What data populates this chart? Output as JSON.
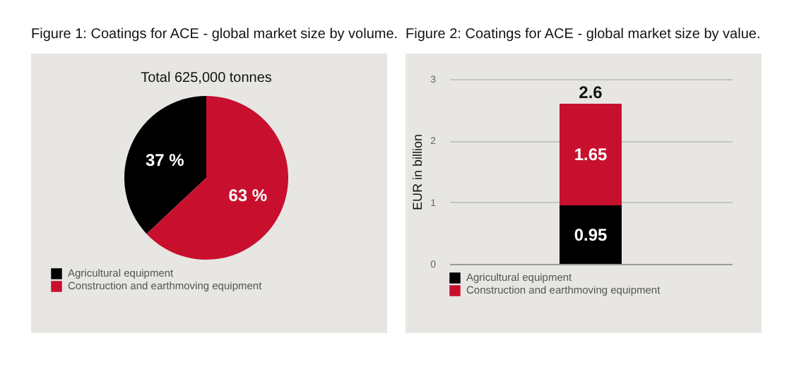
{
  "chart_data": [
    {
      "type": "pie",
      "title": "Figure 1: Coatings for ACE - global market size by volume.",
      "subtitle": "Total 625,000 tonnes",
      "categories": [
        "Agricultural equipment",
        "Construction and earthmoving equipment"
      ],
      "values": [
        37,
        63
      ],
      "colors": [
        "#000000",
        "#c8102e"
      ],
      "value_labels": [
        "37 %",
        "63 %"
      ],
      "legend": "bottom left"
    },
    {
      "type": "bar",
      "title": "Figure 2: Coatings for ACE - global market size by value.",
      "ylabel": "EUR in billion",
      "categories": [
        null
      ],
      "series": [
        {
          "name": "Agricultural equipment",
          "color": "#000000",
          "values": [
            0.95
          ]
        },
        {
          "name": "Construction and earthmoving equipment",
          "color": "#c8102e",
          "values": [
            1.65
          ]
        }
      ],
      "stacked": true,
      "data_labels": true,
      "totals": [
        "2.6"
      ],
      "ylim": [
        0,
        3
      ],
      "yticks": [
        0,
        1,
        2,
        3
      ],
      "grid": "y",
      "legend": "bottom left"
    }
  ]
}
